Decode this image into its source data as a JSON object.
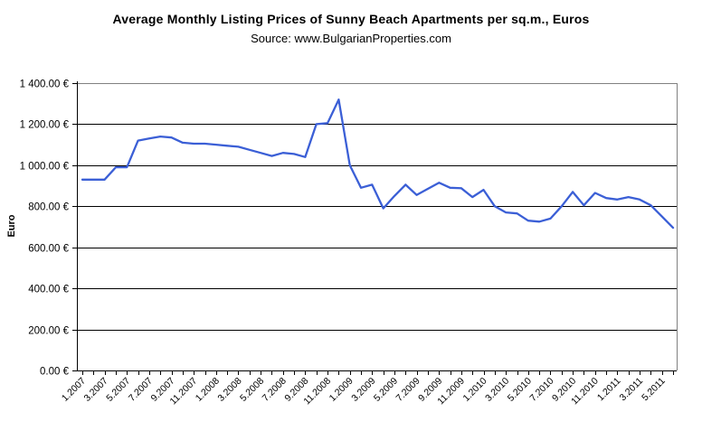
{
  "chart_data": {
    "type": "line",
    "title": "Average Monthly Listing Prices of Sunny Beach Apartments per sq.m., Euros",
    "subtitle": "Source: www.BulgarianProperties.com",
    "ylabel": "Euro",
    "xlabel": "",
    "ylim": [
      0,
      1400
    ],
    "ytick_step": 200,
    "ytick_labels": [
      "0.00 €",
      "200.00 €",
      "400.00 €",
      "600.00 €",
      "800.00 €",
      "1 000.00 €",
      "1 200.00 €",
      "1 400.00 €"
    ],
    "xtick_label_interval": 2,
    "grid": true,
    "legend": "none",
    "line_color": "#3b5fd6",
    "axis_color": "#000000",
    "border_color": "#808080",
    "x": [
      "1.2007",
      "2.2007",
      "3.2007",
      "4.2007",
      "5.2007",
      "6.2007",
      "7.2007",
      "8.2007",
      "9.2007",
      "10.2007",
      "11.2007",
      "12.2007",
      "1.2008",
      "2.2008",
      "3.2008",
      "4.2008",
      "5.2008",
      "6.2008",
      "7.2008",
      "8.2008",
      "9.2008",
      "10.2008",
      "11.2008",
      "12.2008",
      "1.2009",
      "2.2009",
      "3.2009",
      "4.2009",
      "5.2009",
      "6.2009",
      "7.2009",
      "8.2009",
      "9.2009",
      "10.2009",
      "11.2009",
      "12.2009",
      "1.2010",
      "2.2010",
      "3.2010",
      "4.2010",
      "5.2010",
      "6.2010",
      "7.2010",
      "8.2010",
      "9.2010",
      "10.2010",
      "11.2010",
      "12.2010",
      "1.2011",
      "2.2011",
      "3.2011",
      "4.2011",
      "5.2011",
      "6.2011"
    ],
    "values": [
      930,
      930,
      930,
      990,
      990,
      1120,
      1130,
      1140,
      1135,
      1110,
      1105,
      1105,
      1100,
      1095,
      1090,
      1075,
      1060,
      1045,
      1060,
      1055,
      1040,
      1200,
      1205,
      1320,
      1000,
      890,
      905,
      790,
      850,
      905,
      855,
      885,
      915,
      890,
      888,
      845,
      880,
      800,
      770,
      765,
      730,
      725,
      740,
      800,
      870,
      805,
      865,
      840,
      833,
      845,
      833,
      805,
      750,
      695
    ]
  }
}
